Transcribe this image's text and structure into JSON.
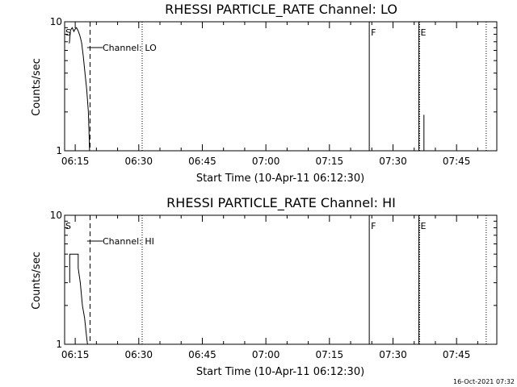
{
  "chart_data": [
    {
      "type": "line",
      "title": "RHESSI PARTICLE_RATE Channel: LO",
      "xlabel": "Start Time (10-Apr-11 06:12:30)",
      "ylabel": "Counts/sec",
      "y_scale": "log",
      "ylim": [
        1,
        10
      ],
      "y_ticks": [
        {
          "v": 1,
          "label": "1"
        },
        {
          "v": 10,
          "label": "10"
        }
      ],
      "xlim_min": [
        2.5,
        82.5
      ],
      "x_ticks": [
        {
          "m": 5,
          "label": "06:15"
        },
        {
          "m": 20,
          "label": "06:30"
        },
        {
          "m": 35,
          "label": "06:45"
        },
        {
          "m": 50,
          "label": "07:00"
        },
        {
          "m": 65,
          "label": "07:15"
        },
        {
          "m": 80,
          "label": "07:30"
        },
        {
          "m": 95,
          "label": "07:45"
        }
      ],
      "grid": false,
      "legend": "none",
      "annotation": "Channel: LO",
      "markers": [
        {
          "m": 8.5,
          "style": "dashed"
        },
        {
          "m": 20.8,
          "style": "dotted"
        },
        {
          "m": 74.4,
          "style": "solid",
          "label": "F"
        },
        {
          "m": 86.1,
          "style": "solid",
          "label": "E"
        },
        {
          "m": 86.3,
          "style": "dotted"
        },
        {
          "m": 102.0,
          "style": "dotted"
        }
      ],
      "start_label": "S",
      "series": [
        {
          "x": [
            3.6,
            3.9,
            4.3,
            4.7,
            4.9,
            5.3,
            5.7,
            6.1,
            6.5,
            6.9,
            7.3,
            7.7,
            8.1,
            8.4
          ],
          "y": [
            6.8,
            8.6,
            9.0,
            8.4,
            8.7,
            9.0,
            8.5,
            7.8,
            6.9,
            5.4,
            4.0,
            3.0,
            2.0,
            1.0
          ]
        },
        {
          "x": [
            87.3,
            87.3,
            87.3
          ],
          "y": [
            1.0,
            1.9,
            1.0
          ]
        }
      ]
    },
    {
      "type": "line",
      "title": "RHESSI PARTICLE_RATE Channel: HI",
      "xlabel": "Start Time (10-Apr-11 06:12:30)",
      "ylabel": "Counts/sec",
      "y_scale": "log",
      "ylim": [
        1,
        10
      ],
      "y_ticks": [
        {
          "v": 1,
          "label": "1"
        },
        {
          "v": 10,
          "label": "10"
        }
      ],
      "x_ticks": [
        {
          "m": 5,
          "label": "06:15"
        },
        {
          "m": 20,
          "label": "06:30"
        },
        {
          "m": 35,
          "label": "06:45"
        },
        {
          "m": 50,
          "label": "07:00"
        },
        {
          "m": 65,
          "label": "07:15"
        },
        {
          "m": 80,
          "label": "07:30"
        },
        {
          "m": 95,
          "label": "07:45"
        }
      ],
      "grid": false,
      "legend": "none",
      "annotation": "Channel: HI",
      "markers": [
        {
          "m": 8.5,
          "style": "dashed"
        },
        {
          "m": 20.8,
          "style": "dotted"
        },
        {
          "m": 74.4,
          "style": "solid",
          "label": "F"
        },
        {
          "m": 86.1,
          "style": "solid",
          "label": "E"
        },
        {
          "m": 86.3,
          "style": "dotted"
        },
        {
          "m": 102.0,
          "style": "dotted"
        }
      ],
      "start_label": "S",
      "series": [
        {
          "x": [
            3.7,
            3.7,
            5.7,
            5.7,
            6.2,
            6.7,
            7.2,
            7.6,
            7.9
          ],
          "y": [
            3.0,
            5.0,
            5.0,
            3.9,
            3.0,
            2.0,
            1.6,
            1.2,
            1.0
          ]
        }
      ]
    }
  ],
  "footer": {
    "timestamp": "16-Oct-2021 07:32"
  }
}
